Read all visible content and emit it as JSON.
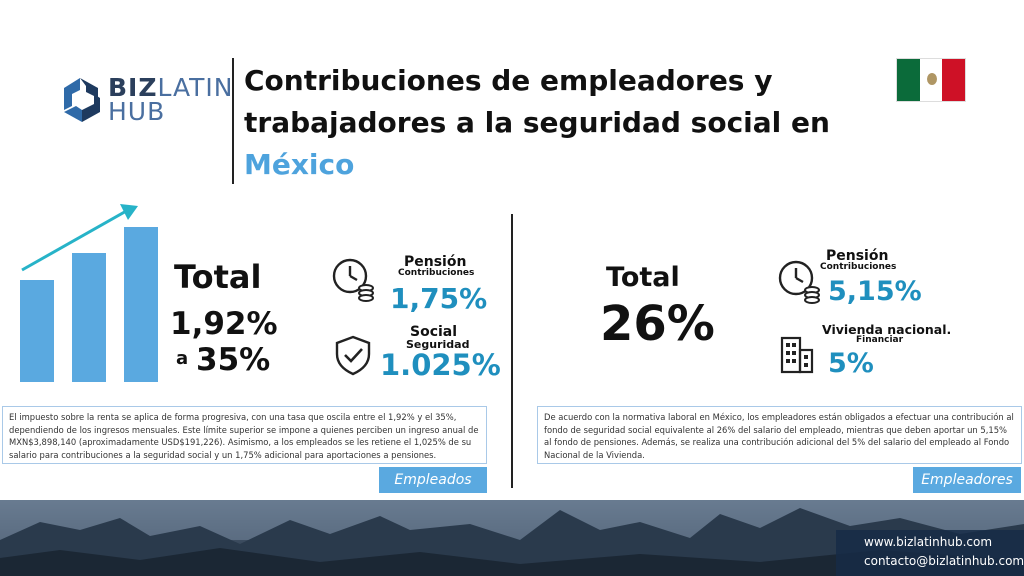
{
  "brand": {
    "logo_part1": "BIZ",
    "logo_part2": "LATIN",
    "logo_part3": "HUB"
  },
  "header": {
    "title": "Contribuciones de empleadores y trabajadores a la seguridad social en",
    "country": "México"
  },
  "left": {
    "total_label": "Total",
    "range_from": "1,92%",
    "range_sep": "a",
    "range_to": "35%",
    "item1": {
      "title": "Pensión",
      "subtitle": "Contribuciones",
      "value": "1,75%"
    },
    "item2": {
      "title": "Social",
      "subtitle": "Seguridad",
      "value": "1.025%"
    },
    "note": "El impuesto sobre la renta se aplica de forma progresiva, con una tasa que oscila entre el 1,92% y el 35%, dependiendo de los ingresos mensuales. Este límite superior se impone a quienes perciben un ingreso anual de MXN$3,898,140 (aproximadamente USD$191,226). Asimismo, a los empleados se les retiene el 1,025% de su salario para contribuciones a la seguridad social y un 1,75% adicional para aportaciones a pensiones.",
    "tag": "Empleados"
  },
  "right": {
    "total_label": "Total",
    "total_value": "26%",
    "item1": {
      "title": "Pensión",
      "subtitle": "Contribuciones",
      "value": "5,15%"
    },
    "item2": {
      "title": "Vivienda nacional.",
      "subtitle": "Financiar",
      "value": "5%"
    },
    "note": "De acuerdo con la normativa laboral en México, los empleadores están obligados a efectuar una contribución al fondo de seguridad social equivalente al 26% del salario del empleado, mientras que deben aportar un 5,15% al fondo de pensiones. Además, se realiza una contribución adicional del 5% del salario del empleado al Fondo Nacional de la Vivienda.",
    "tag": "Empleadores"
  },
  "contact": {
    "web": "www.bizlatinhub.com",
    "email": "contacto@bizlatinhub.com"
  },
  "icons": [
    "growth-chart-icon",
    "clock-coins-icon",
    "shield-check-icon",
    "building-icon"
  ],
  "colors": {
    "accent_blue": "#1f8fbe",
    "title_blue": "#4ea3dd",
    "bar_blue": "#5aa9e0",
    "arrow_teal": "#27b3c8"
  }
}
